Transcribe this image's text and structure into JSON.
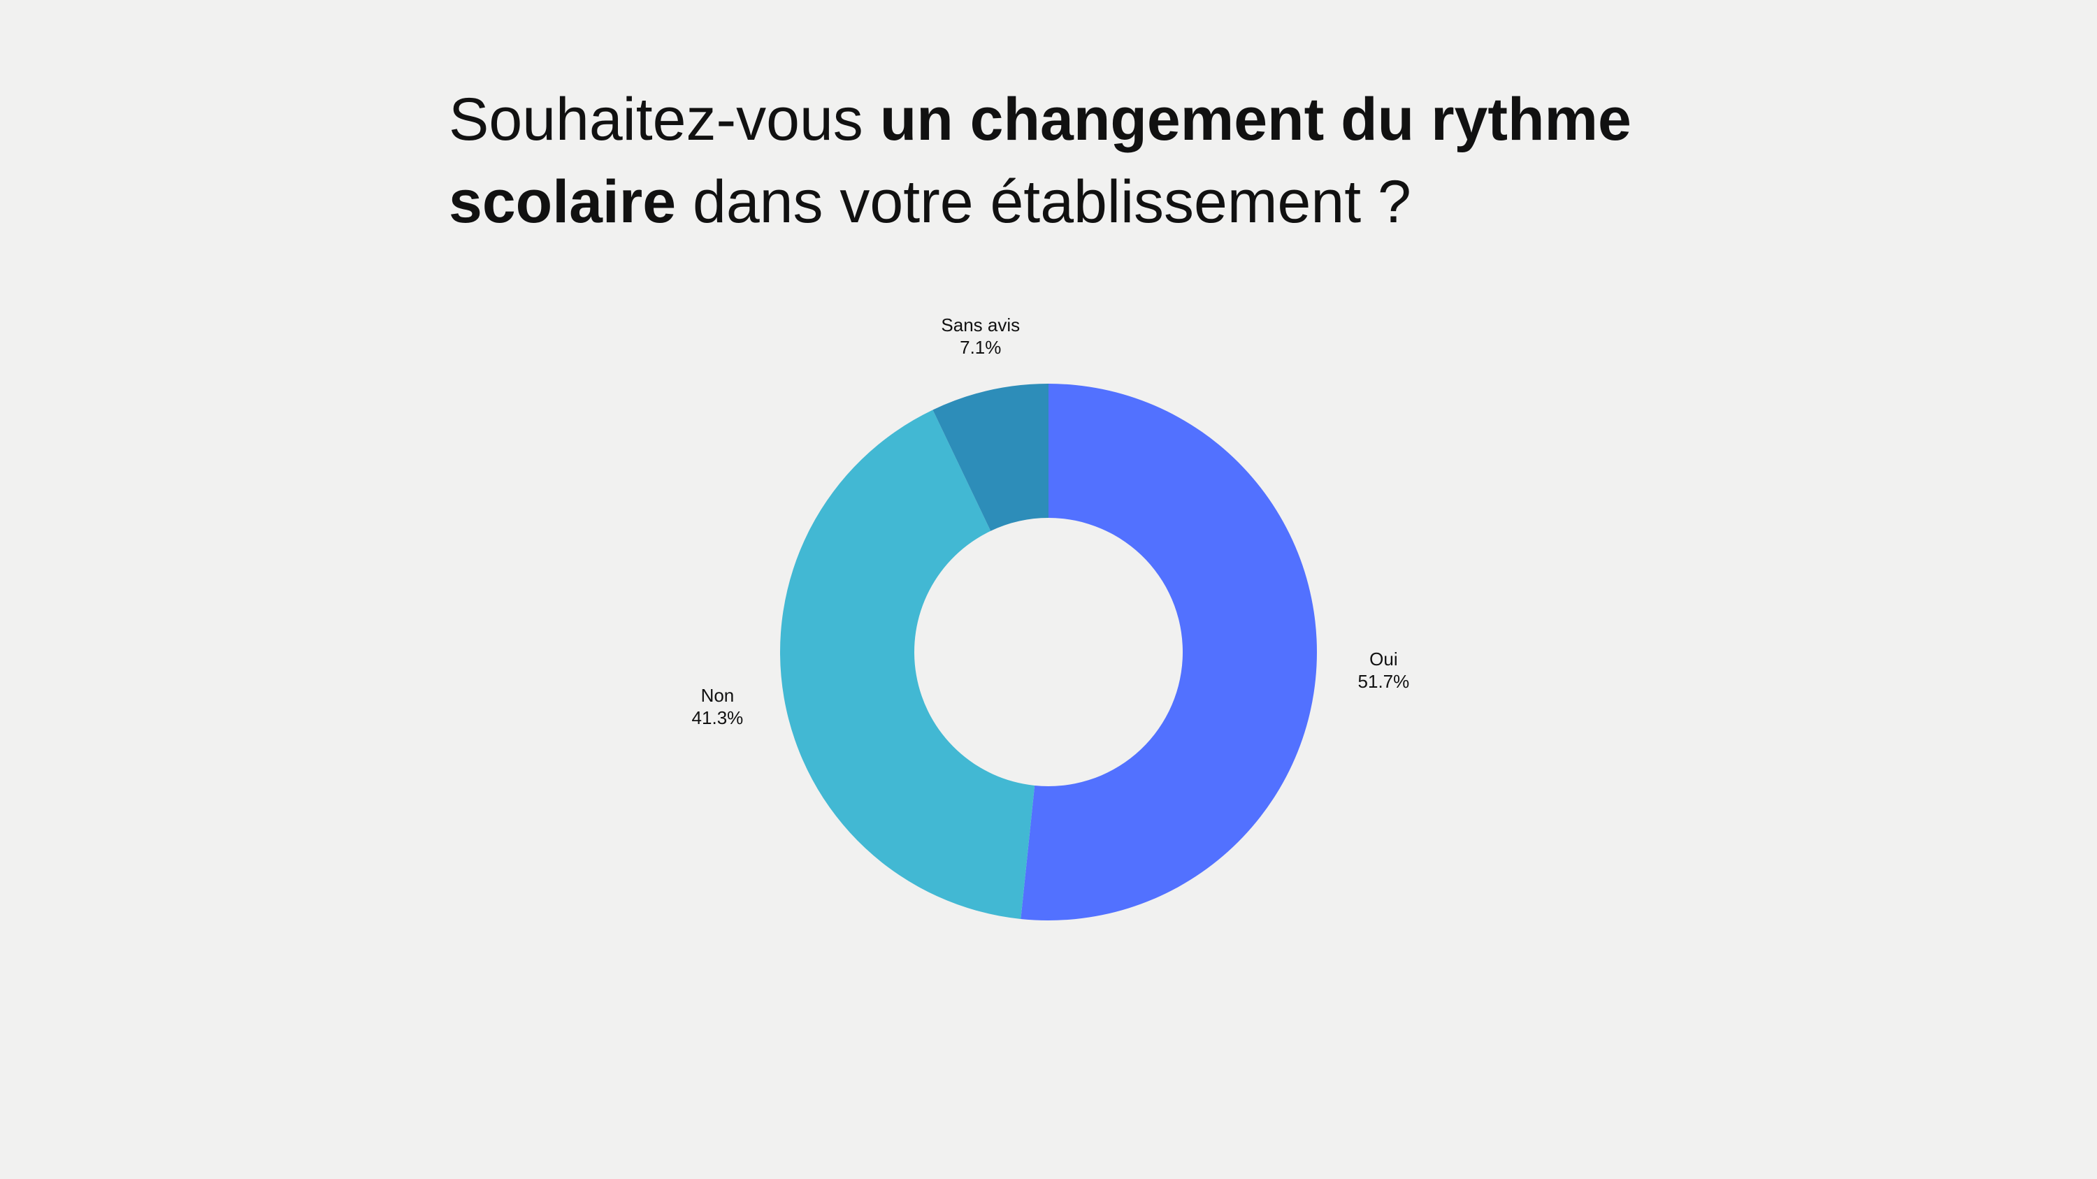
{
  "chart_data": {
    "type": "pie",
    "donut": true,
    "title_parts": [
      {
        "text": "Souhaitez-vous ",
        "bold": false
      },
      {
        "text": "un changement du rythme scolaire",
        "bold": true
      },
      {
        "text": " dans votre établissement ?",
        "bold": false
      }
    ],
    "slices": [
      {
        "label": "Oui",
        "value": 51.7,
        "value_label": "51.7%",
        "color": "#5271ff"
      },
      {
        "label": "Non",
        "value": 41.3,
        "value_label": "41.3%",
        "color": "#42b8d3"
      },
      {
        "label": "Sans avis",
        "value": 7.1,
        "value_label": "7.1%",
        "color": "#2d8db9"
      }
    ],
    "start": "12 o'clock",
    "direction": "clockwise",
    "legend": "none"
  }
}
